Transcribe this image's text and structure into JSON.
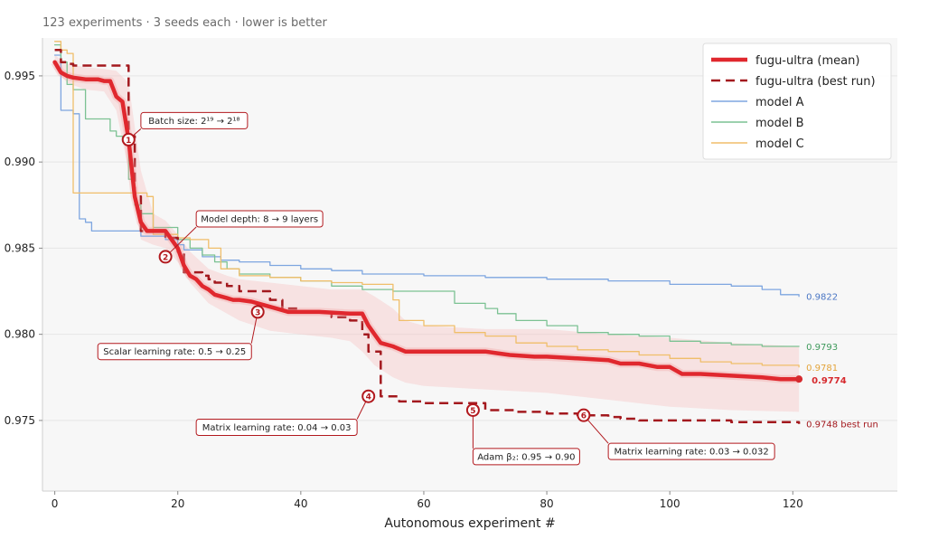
{
  "subtitle": "123 experiments · 3 seeds each · lower is better",
  "chart_data": {
    "type": "line",
    "xlabel": "Autonomous experiment #",
    "ylabel": "",
    "xlim": [
      -2,
      137
    ],
    "ylim": [
      0.9709,
      0.9972
    ],
    "xticks": [
      0,
      20,
      40,
      60,
      80,
      100,
      120
    ],
    "yticks": [
      0.975,
      0.98,
      0.985,
      0.99,
      0.995
    ],
    "ytick_labels": [
      "0.975",
      "0.980",
      "0.985",
      "0.990",
      "0.995"
    ],
    "grid": "horizontal",
    "legend_position": "top-right",
    "legend": [
      {
        "label": "fugu-ultra (mean)",
        "color": "#e0282e",
        "style": "thick"
      },
      {
        "label": "fugu-ultra (best run)",
        "color": "#a3191e",
        "style": "dashed"
      },
      {
        "label": "model A",
        "color": "#7ea6e0",
        "style": "thin"
      },
      {
        "label": "model B",
        "color": "#7cc293",
        "style": "thin"
      },
      {
        "label": "model C",
        "color": "#f0be6a",
        "style": "thin"
      }
    ],
    "series": [
      {
        "key": "mean",
        "name": "fugu-ultra (mean)",
        "color": "#e0282e",
        "width": 4.5,
        "dash": "",
        "x": [
          0,
          1,
          2,
          3,
          5,
          7,
          8,
          9,
          10,
          11,
          12,
          13,
          14,
          15,
          16,
          18,
          19,
          20,
          21,
          22,
          23,
          24,
          25,
          26,
          27,
          28,
          29,
          30,
          32,
          34,
          36,
          38,
          40,
          43,
          48,
          50,
          51,
          52,
          53,
          55,
          57,
          60,
          65,
          70,
          72,
          74,
          78,
          80,
          85,
          90,
          92,
          95,
          98,
          100,
          102,
          105,
          110,
          115,
          118,
          121
        ],
        "y": [
          0.9958,
          0.9952,
          0.995,
          0.9949,
          0.9948,
          0.9948,
          0.9947,
          0.9947,
          0.9938,
          0.9935,
          0.9913,
          0.988,
          0.9865,
          0.986,
          0.986,
          0.986,
          0.9855,
          0.985,
          0.984,
          0.9834,
          0.9832,
          0.9828,
          0.9826,
          0.9823,
          0.9822,
          0.9821,
          0.982,
          0.982,
          0.9819,
          0.9817,
          0.9815,
          0.9813,
          0.9813,
          0.9813,
          0.9812,
          0.9812,
          0.9805,
          0.98,
          0.9795,
          0.9793,
          0.979,
          0.979,
          0.979,
          0.979,
          0.9789,
          0.9788,
          0.9787,
          0.9787,
          0.9786,
          0.9785,
          0.9783,
          0.9783,
          0.9781,
          0.9781,
          0.9777,
          0.9777,
          0.9776,
          0.9775,
          0.9774,
          0.9774
        ]
      },
      {
        "key": "best",
        "name": "fugu-ultra (best run)",
        "color": "#a3191e",
        "width": 2.5,
        "dash": "10,6",
        "x": [
          0,
          1,
          2,
          3,
          11,
          12,
          13,
          14,
          17,
          18,
          20,
          21,
          24,
          25,
          26,
          28,
          30,
          35,
          37,
          40,
          45,
          48,
          50,
          51,
          53,
          56,
          60,
          65,
          70,
          75,
          80,
          85,
          90,
          92,
          95,
          100,
          110,
          121
        ],
        "y": [
          0.9965,
          0.9958,
          0.9957,
          0.9956,
          0.9956,
          0.9915,
          0.988,
          0.986,
          0.986,
          0.9856,
          0.9848,
          0.9836,
          0.9834,
          0.9832,
          0.983,
          0.9828,
          0.9825,
          0.982,
          0.9815,
          0.9813,
          0.981,
          0.9808,
          0.98,
          0.979,
          0.9764,
          0.9761,
          0.976,
          0.976,
          0.9756,
          0.9755,
          0.9754,
          0.9753,
          0.9752,
          0.9751,
          0.975,
          0.975,
          0.9749,
          0.9748
        ]
      },
      {
        "key": "A",
        "name": "model A",
        "color": "#7ea6e0",
        "width": 1.3,
        "dash": "",
        "x": [
          0,
          1,
          2,
          3,
          4,
          5,
          6,
          10,
          14,
          18,
          20,
          21,
          24,
          27,
          30,
          35,
          40,
          45,
          50,
          60,
          70,
          80,
          90,
          100,
          110,
          115,
          118,
          121
        ],
        "y": [
          0.9962,
          0.993,
          0.993,
          0.9928,
          0.9867,
          0.9865,
          0.986,
          0.986,
          0.9857,
          0.9855,
          0.9852,
          0.9849,
          0.9845,
          0.9843,
          0.9842,
          0.984,
          0.9838,
          0.9837,
          0.9835,
          0.9834,
          0.9833,
          0.9832,
          0.9831,
          0.9829,
          0.9828,
          0.9826,
          0.9823,
          0.9822
        ]
      },
      {
        "key": "B",
        "name": "model B",
        "color": "#7cc293",
        "width": 1.3,
        "dash": "",
        "x": [
          0,
          1,
          2,
          3,
          5,
          7,
          9,
          10,
          11,
          12,
          13,
          14,
          16,
          20,
          22,
          24,
          26,
          28,
          30,
          35,
          40,
          45,
          50,
          55,
          60,
          65,
          70,
          72,
          75,
          80,
          85,
          90,
          95,
          100,
          105,
          110,
          115,
          121
        ],
        "y": [
          0.9968,
          0.9958,
          0.9945,
          0.9942,
          0.9925,
          0.9925,
          0.9918,
          0.9915,
          0.9912,
          0.989,
          0.9875,
          0.987,
          0.9862,
          0.9855,
          0.985,
          0.9846,
          0.9842,
          0.9838,
          0.9835,
          0.9833,
          0.9831,
          0.9828,
          0.9826,
          0.9825,
          0.9825,
          0.9818,
          0.9815,
          0.9812,
          0.9808,
          0.9805,
          0.9801,
          0.98,
          0.9799,
          0.9796,
          0.9795,
          0.9794,
          0.9793,
          0.9793
        ]
      },
      {
        "key": "C",
        "name": "model C",
        "color": "#f0be6a",
        "width": 1.3,
        "dash": "",
        "x": [
          0,
          1,
          2,
          3,
          4,
          5,
          6,
          10,
          13,
          15,
          16,
          19,
          20,
          22,
          25,
          27,
          30,
          35,
          40,
          45,
          50,
          54,
          55,
          56,
          60,
          65,
          70,
          75,
          80,
          85,
          90,
          95,
          100,
          105,
          110,
          115,
          121
        ],
        "y": [
          0.997,
          0.9965,
          0.9963,
          0.9882,
          0.9882,
          0.9882,
          0.9882,
          0.9882,
          0.9882,
          0.988,
          0.9858,
          0.9858,
          0.9856,
          0.9855,
          0.985,
          0.9838,
          0.9834,
          0.9833,
          0.9831,
          0.983,
          0.9829,
          0.9829,
          0.982,
          0.9808,
          0.9805,
          0.9801,
          0.9799,
          0.9795,
          0.9793,
          0.9791,
          0.979,
          0.9788,
          0.9786,
          0.9784,
          0.9783,
          0.9782,
          0.9781
        ]
      }
    ],
    "band": {
      "x": [
        0,
        2,
        5,
        8,
        10,
        12,
        14,
        16,
        18,
        20,
        22,
        25,
        28,
        30,
        35,
        40,
        45,
        48,
        50,
        52,
        55,
        57,
        60,
        70,
        80,
        90,
        100,
        110,
        121
      ],
      "upper": [
        0.9962,
        0.9957,
        0.9955,
        0.9954,
        0.9953,
        0.9946,
        0.9895,
        0.987,
        0.9866,
        0.9858,
        0.9848,
        0.9838,
        0.9834,
        0.9832,
        0.983,
        0.9828,
        0.9826,
        0.9826,
        0.9826,
        0.9822,
        0.9815,
        0.9808,
        0.9805,
        0.9803,
        0.9803,
        0.98,
        0.9798,
        0.9795,
        0.9793
      ],
      "lower": [
        0.9954,
        0.9946,
        0.9942,
        0.9941,
        0.993,
        0.9895,
        0.9855,
        0.9852,
        0.985,
        0.9842,
        0.983,
        0.9818,
        0.9812,
        0.9808,
        0.9802,
        0.98,
        0.9798,
        0.9796,
        0.979,
        0.9782,
        0.9775,
        0.9772,
        0.977,
        0.9768,
        0.9766,
        0.9762,
        0.9758,
        0.9756,
        0.9755
      ]
    },
    "end_labels": [
      {
        "text": "0.9822",
        "x": 121,
        "y": 0.9822,
        "color": "#4a76c4",
        "size": "small"
      },
      {
        "text": "0.9793",
        "x": 121,
        "y": 0.9793,
        "color": "#3f9a5c",
        "size": "small"
      },
      {
        "text": "0.9781",
        "x": 121,
        "y": 0.9781,
        "color": "#e3a43a",
        "size": "small"
      },
      {
        "text": "0.9774",
        "x": 121,
        "y": 0.9774,
        "color": "#d62a2e",
        "size": "large"
      },
      {
        "text": "0.9748  best run",
        "x": 121,
        "y": 0.9748,
        "color": "#a3191e",
        "size": "small"
      }
    ],
    "annotations": [
      {
        "n": "1",
        "x": 12,
        "y": 0.9913,
        "label": "Batch size:  2¹⁹ → 2¹⁸",
        "lx": 14,
        "ly": 0.9924,
        "w": 118
      },
      {
        "n": "2",
        "x": 18,
        "y": 0.9845,
        "label": "Model depth:  8 → 9 layers",
        "lx": 23,
        "ly": 0.9867,
        "w": 140
      },
      {
        "n": "3",
        "x": 33,
        "y": 0.9813,
        "label": "Scalar learning rate:  0.5 → 0.25",
        "lx": 7,
        "ly": 0.979,
        "w": 170
      },
      {
        "n": "4",
        "x": 51,
        "y": 0.9764,
        "label": "Matrix learning rate:  0.04 → 0.03",
        "lx": 23,
        "ly": 0.9746,
        "w": 178
      },
      {
        "n": "5",
        "x": 68,
        "y": 0.9756,
        "label": "Adam β₂:  0.95 → 0.90",
        "lx": 68,
        "ly": 0.9729,
        "w": 118
      },
      {
        "n": "6",
        "x": 86,
        "y": 0.9753,
        "label": "Matrix learning rate:  0.03 → 0.032",
        "lx": 90,
        "ly": 0.9732,
        "w": 184
      }
    ]
  }
}
